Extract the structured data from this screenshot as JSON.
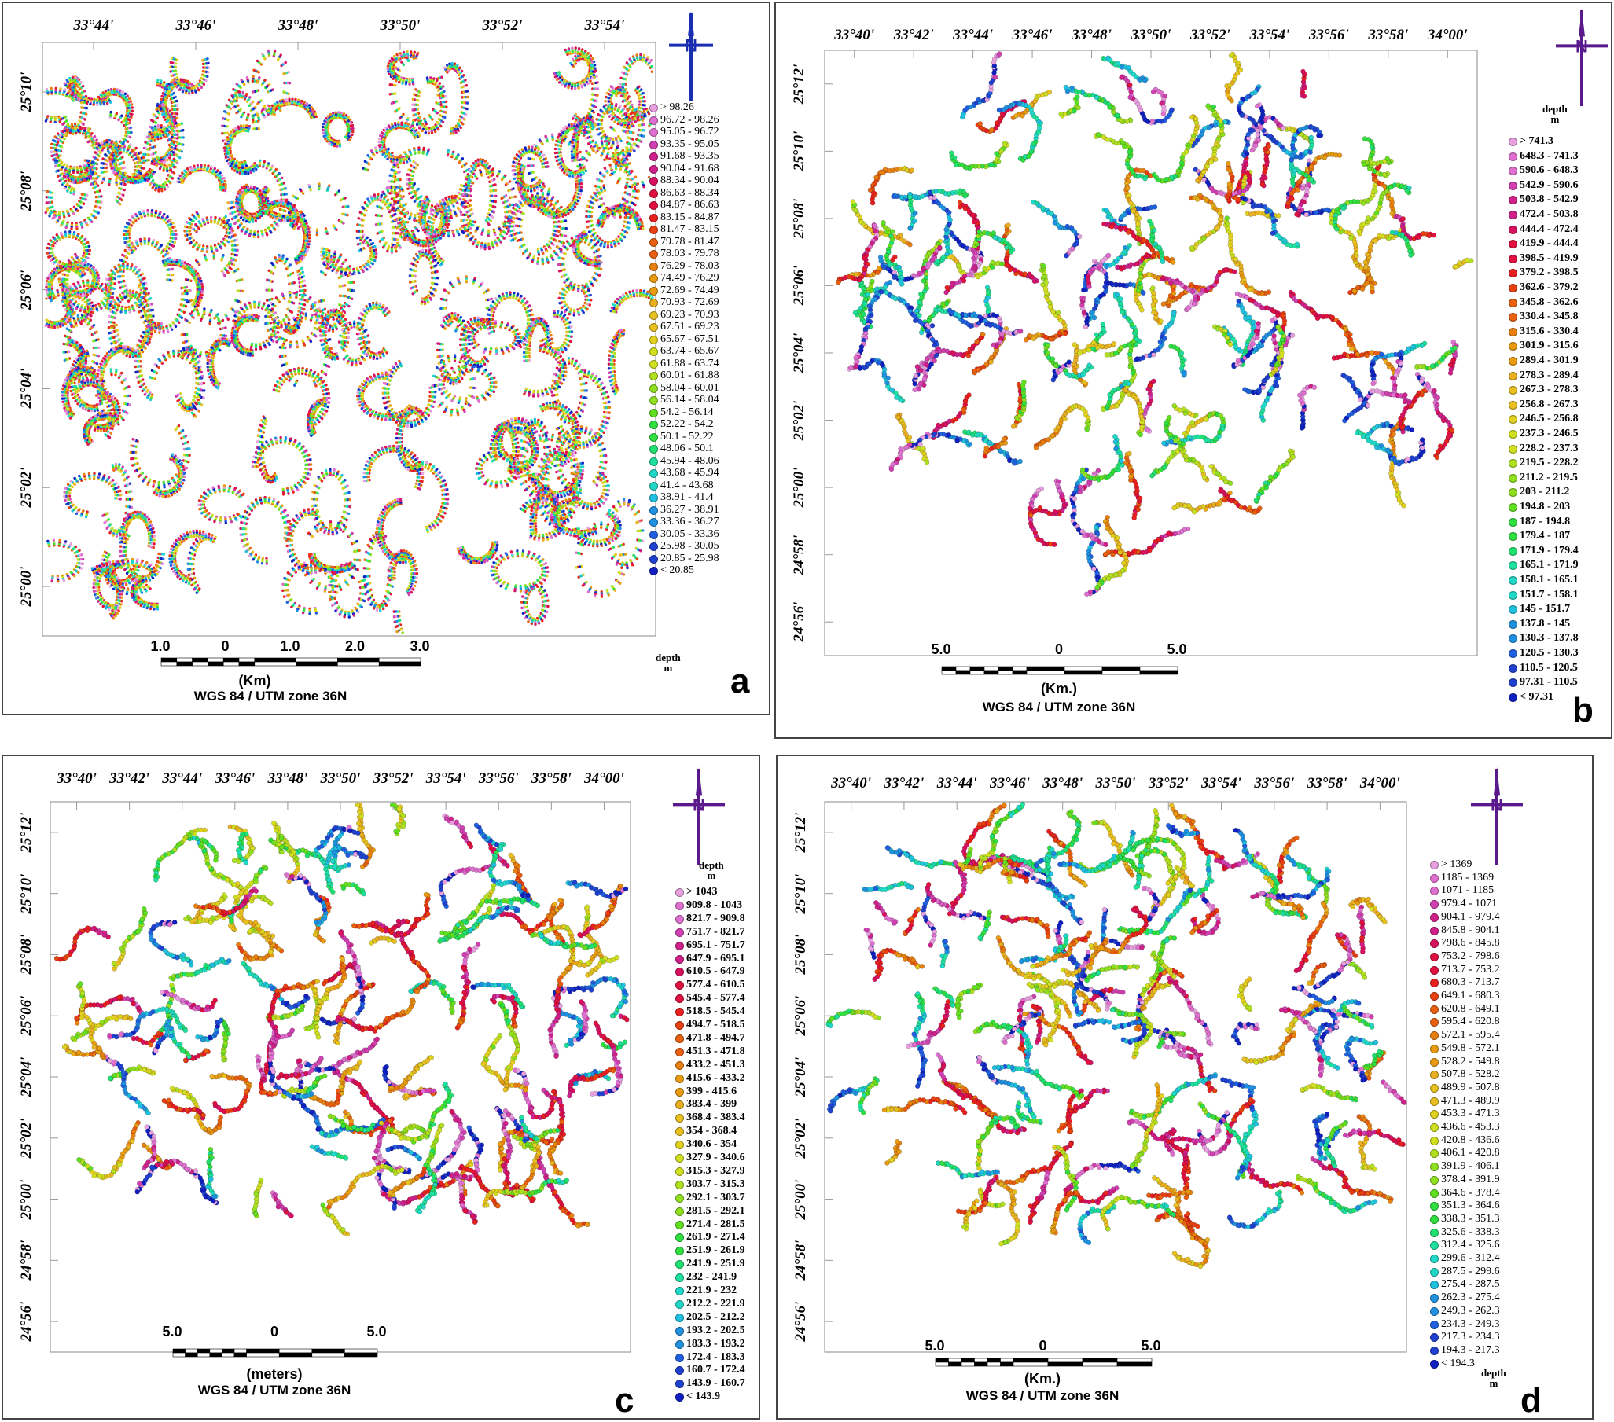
{
  "panels": [
    {
      "letter": "a",
      "lon_labels": [
        "33°44'",
        "33°46'",
        "33°48'",
        "33°50'",
        "33°52'",
        "33°54'"
      ],
      "lat_labels": [
        "25°10'",
        "25°08'",
        "25°06'",
        "25°04'",
        "25°02'",
        "25°00'"
      ],
      "legend_title": "depth\nm",
      "legend_title_position": "bottom",
      "legend": [
        "> 98.26",
        "96.72 - 98.26",
        "95.05 - 96.72",
        "93.35 - 95.05",
        "91.68 - 93.35",
        "90.04 - 91.68",
        "88.34 - 90.04",
        "86.63 - 88.34",
        "84.87 - 86.63",
        "83.15 - 84.87",
        "81.47 - 83.15",
        "79.78 - 81.47",
        "78.03 - 79.78",
        "76.29 - 78.03",
        "74.49 - 76.29",
        "72.69 - 74.49",
        "70.93 - 72.69",
        "69.23 - 70.93",
        "67.51 - 69.23",
        "65.67 - 67.51",
        "63.74 - 65.67",
        "61.88 - 63.74",
        "60.01 - 61.88",
        "58.04 - 60.01",
        "56.14 - 58.04",
        "54.2 - 56.14",
        "52.22 - 54.2",
        "50.1 - 52.22",
        "48.06 - 50.1",
        "45.94 - 48.06",
        "43.68 - 45.94",
        "41.4 - 43.68",
        "38.91 - 41.4",
        "36.27 - 38.91",
        "33.36 - 36.27",
        "30.05 - 33.36",
        "25.98 - 30.05",
        "20.85 - 25.98",
        "< 20.85"
      ],
      "scale_labels": [
        "1.0",
        "0",
        "1.0",
        "2.0",
        "3.0"
      ],
      "scale_unit": "(Km)",
      "crs": "WGS 84 / UTM zone 36N",
      "north_color": "#1a2fb0"
    },
    {
      "letter": "b",
      "lon_labels": [
        "33°40'",
        "33°42'",
        "33°44'",
        "33°46'",
        "33°48'",
        "33°50'",
        "33°52'",
        "33°54'",
        "33°56'",
        "33°58'",
        "34°00'"
      ],
      "lat_labels": [
        "25°12'",
        "25°10'",
        "25°08'",
        "25°06'",
        "25°04'",
        "25°02'",
        "25°00'",
        "24°58'",
        "24°56'"
      ],
      "legend_title": "depth\nm",
      "legend_title_position": "top",
      "legend": [
        "> 741.3",
        "648.3 - 741.3",
        "590.6 - 648.3",
        "542.9 - 590.6",
        "503.8 - 542.9",
        "472.4 - 503.8",
        "444.4 - 472.4",
        "419.9 - 444.4",
        "398.5 - 419.9",
        "379.2 - 398.5",
        "362.6 - 379.2",
        "345.8 - 362.6",
        "330.4 - 345.8",
        "315.6 - 330.4",
        "301.9 - 315.6",
        "289.4 - 301.9",
        "278.3 - 289.4",
        "267.3 - 278.3",
        "256.8 - 267.3",
        "246.5 - 256.8",
        "237.3 - 246.5",
        "228.2 - 237.3",
        "219.5 - 228.2",
        "211.2 - 219.5",
        "203 - 211.2",
        "194.8 - 203",
        "187 - 194.8",
        "179.4 - 187",
        "171.9 - 179.4",
        "165.1 - 171.9",
        "158.1 - 165.1",
        "151.7 - 158.1",
        "145 - 151.7",
        "137.8 - 145",
        "130.3 - 137.8",
        "120.5 - 130.3",
        "110.5 - 120.5",
        "97.31 - 110.5",
        "< 97.31"
      ],
      "scale_labels": [
        "5.0",
        "0",
        "5.0"
      ],
      "scale_unit": "(Km.)",
      "crs": "WGS 84 / UTM zone 36N",
      "north_color": "#5a1a8c"
    },
    {
      "letter": "c",
      "lon_labels": [
        "33°40'",
        "33°42'",
        "33°44'",
        "33°46'",
        "33°48'",
        "33°50'",
        "33°52'",
        "33°54'",
        "33°56'",
        "33°58'",
        "34°00'"
      ],
      "lat_labels": [
        "25°12'",
        "25°10'",
        "25°08'",
        "25°06'",
        "25°04'",
        "25°02'",
        "25°00'",
        "24°58'",
        "24°56'"
      ],
      "legend_title": "depth\nm",
      "legend_title_position": "top",
      "legend": [
        "> 1043",
        "909.8 - 1043",
        "821.7 - 909.8",
        "751.7 - 821.7",
        "695.1 - 751.7",
        "647.9 - 695.1",
        "610.5 - 647.9",
        "577.4 - 610.5",
        "545.4 - 577.4",
        "518.5 - 545.4",
        "494.7 - 518.5",
        "471.8 - 494.7",
        "451.3 - 471.8",
        "433.2 - 451.3",
        "415.6 - 433.2",
        "399 - 415.6",
        "383.4 - 399",
        "368.4 - 383.4",
        "354 - 368.4",
        "340.6 - 354",
        "327.9 - 340.6",
        "315.3 - 327.9",
        "303.7 - 315.3",
        "292.1 - 303.7",
        "281.5 - 292.1",
        "271.4 - 281.5",
        "261.9 - 271.4",
        "251.9 - 261.9",
        "241.9 - 251.9",
        "232 - 241.9",
        "221.9 - 232",
        "212.2 - 221.9",
        "202.5 - 212.2",
        "193.2 - 202.5",
        "183.3 - 193.2",
        "172.4 - 183.3",
        "160.7 - 172.4",
        "143.9 - 160.7",
        "< 143.9"
      ],
      "scale_labels": [
        "5.0",
        "0",
        "5.0"
      ],
      "scale_unit": "(meters)",
      "crs": "WGS 84 / UTM zone 36N",
      "north_color": "#5a1a8c"
    },
    {
      "letter": "d",
      "lon_labels": [
        "33°40'",
        "33°42'",
        "33°44'",
        "33°46'",
        "33°48'",
        "33°50'",
        "33°52'",
        "33°54'",
        "33°56'",
        "33°58'",
        "34°00'"
      ],
      "lat_labels": [
        "25°12'",
        "25°10'",
        "25°08'",
        "25°06'",
        "25°04'",
        "25°02'",
        "25°00'",
        "24°58'",
        "24°56'"
      ],
      "legend_title": "depth\nm",
      "legend_title_position": "bottom",
      "legend": [
        "> 1369",
        "1185 - 1369",
        "1071 - 1185",
        "979.4 - 1071",
        "904.1 - 979.4",
        "845.8 - 904.1",
        "798.6 - 845.8",
        "753.2 - 798.6",
        "713.7 - 753.2",
        "680.3 - 713.7",
        "649.1 - 680.3",
        "620.8 - 649.1",
        "595.4 - 620.8",
        "572.1 - 595.4",
        "549.8 - 572.1",
        "528.2 - 549.8",
        "507.8 - 528.2",
        "489.9 - 507.8",
        "471.3 - 489.9",
        "453.3 - 471.3",
        "436.6 - 453.3",
        "420.8 - 436.6",
        "406.1 - 420.8",
        "391.9 - 406.1",
        "378.4 - 391.9",
        "364.6 - 378.4",
        "351.3 - 364.6",
        "338.3 - 351.3",
        "325.6 - 338.3",
        "312.4 - 325.6",
        "299.6 - 312.4",
        "287.5 - 299.6",
        "275.4 - 287.5",
        "262.3 - 275.4",
        "249.3 - 262.3",
        "234.3 - 249.3",
        "217.3 - 234.3",
        "194.3 - 217.3",
        "< 194.3"
      ],
      "scale_labels": [
        "5.0",
        "0",
        "5.0"
      ],
      "scale_unit": "(Km.)",
      "crs": "WGS 84 / UTM zone 36N",
      "north_color": "#5a1a8c"
    }
  ],
  "north_letter": "N",
  "palette": [
    "#e8a0e0",
    "#e070d0",
    "#d040b0",
    "#d0208a",
    "#d81060",
    "#e01040",
    "#e82020",
    "#e84010",
    "#e86010",
    "#e88010",
    "#e89a10",
    "#e8b020",
    "#e8c020",
    "#e0d020",
    "#d0e020",
    "#b0e020",
    "#90e020",
    "#60e020",
    "#30e040",
    "#20e070",
    "#20e0a0",
    "#20d8c8",
    "#20c0e0",
    "#2090e0",
    "#2060e0",
    "#2040d0",
    "#1020c0"
  ]
}
